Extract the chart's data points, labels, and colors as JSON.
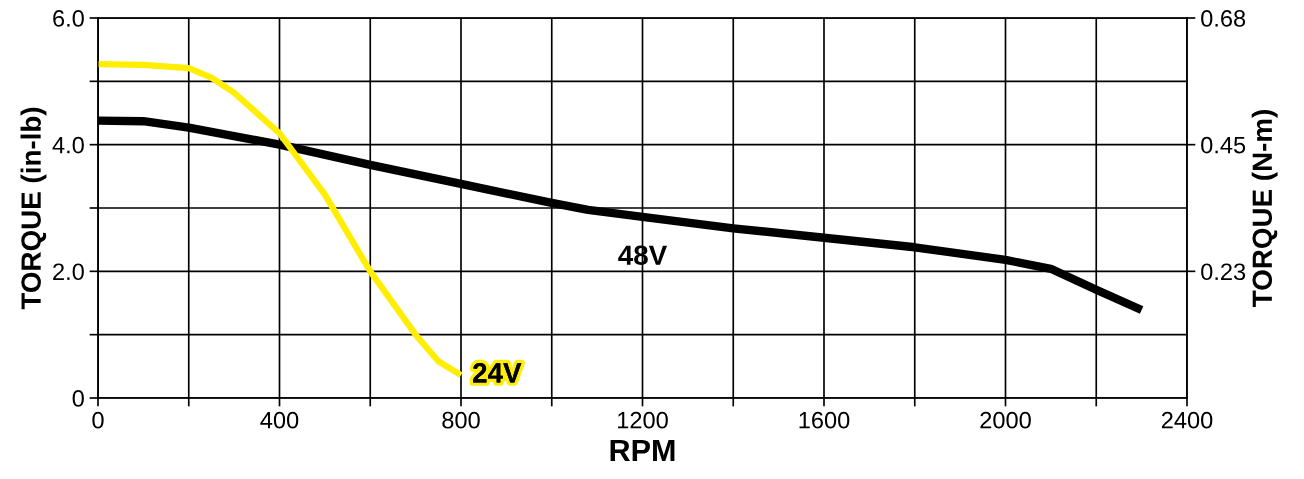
{
  "chart_data": {
    "type": "line",
    "xlabel": "RPM",
    "ylabel": "TORQUE (in-lb)",
    "y2label": "TORQUE (N-m)",
    "xlim": [
      0,
      2400
    ],
    "xticks": [
      0,
      {
        "value": 200,
        "label": null
      },
      400,
      {
        "value": 600,
        "label": null
      },
      800,
      {
        "value": 1000,
        "label": null
      },
      1200,
      {
        "value": 1400,
        "label": null
      },
      1600,
      {
        "value": 1800,
        "label": null
      },
      2000,
      {
        "value": 2200,
        "label": null
      },
      2400
    ],
    "ylim": [
      0,
      6
    ],
    "yticks": [
      {
        "value": 0,
        "label": "0"
      },
      {
        "value": 1,
        "label": null
      },
      {
        "value": 2,
        "label": "2.0"
      },
      {
        "value": 3,
        "label": null
      },
      {
        "value": 4,
        "label": "4.0"
      },
      {
        "value": 5,
        "label": null
      },
      {
        "value": 6,
        "label": "6.0"
      }
    ],
    "y2lim": [
      0,
      0.678
    ],
    "y2ticks": [
      {
        "value": 0.226,
        "label": "0.23"
      },
      {
        "value": 0.452,
        "label": "0.45"
      },
      {
        "value": 0.678,
        "label": "0.68"
      }
    ],
    "grid": true,
    "legend": false,
    "marker": "none",
    "line_style": "solid",
    "series": [
      {
        "name": "48V",
        "color": "#000000",
        "x": [
          0,
          100,
          200,
          400,
          600,
          800,
          1000,
          1080,
          1200,
          1400,
          1600,
          1800,
          2000,
          2100,
          2200,
          2300
        ],
        "values": [
          4.38,
          4.37,
          4.27,
          4.0,
          3.68,
          3.38,
          3.08,
          2.97,
          2.86,
          2.68,
          2.53,
          2.38,
          2.18,
          2.04,
          1.71,
          1.39
        ]
      },
      {
        "name": "24V",
        "color": "#ffee00",
        "x": [
          0,
          100,
          200,
          250,
          300,
          400,
          500,
          600,
          700,
          750,
          800
        ],
        "values": [
          5.27,
          5.26,
          5.21,
          5.06,
          4.82,
          4.18,
          3.21,
          2.0,
          1.0,
          0.58,
          0.36
        ]
      }
    ]
  }
}
